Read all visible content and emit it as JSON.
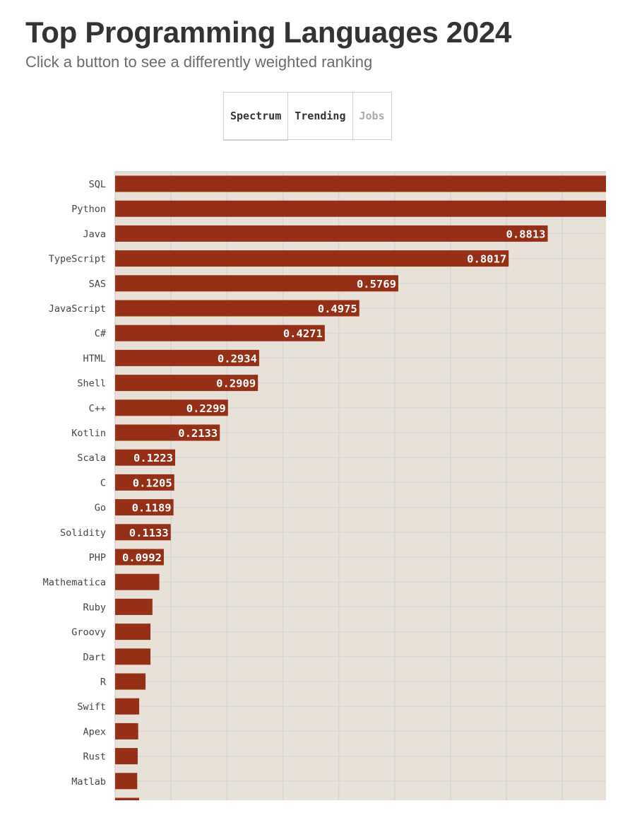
{
  "header": {
    "title": "Top Programming Languages 2024",
    "subtitle": "Click a button to see a differently weighted ranking"
  },
  "tabs": [
    {
      "label": "Spectrum",
      "state": "active"
    },
    {
      "label": "Trending",
      "state": "enabled"
    },
    {
      "label": "Jobs",
      "state": "disabled"
    }
  ],
  "colors": {
    "bar": "#952f15",
    "plot_background": "#e8e1d8",
    "grid": "#d6d6d6"
  },
  "chart_data": {
    "type": "bar",
    "orientation": "horizontal",
    "xlim": [
      0,
      1
    ],
    "grid": true,
    "categories": [
      "SQL",
      "Python",
      "Java",
      "TypeScript",
      "SAS",
      "JavaScript",
      "C#",
      "HTML",
      "Shell",
      "C++",
      "Kotlin",
      "Scala",
      "C",
      "Go",
      "Solidity",
      "PHP",
      "Mathematica",
      "Ruby",
      "Groovy",
      "Dart",
      "R",
      "Swift",
      "Apex",
      "Rust",
      "Matlab"
    ],
    "values": [
      1.0,
      1.0,
      0.8813,
      0.8017,
      0.5769,
      0.4975,
      0.4271,
      0.2934,
      0.2909,
      0.2299,
      0.2133,
      0.1223,
      0.1205,
      0.1189,
      0.1133,
      0.0992,
      0.09,
      0.076,
      0.072,
      0.072,
      0.062,
      0.049,
      0.047,
      0.046,
      0.045
    ],
    "data_labels": [
      "",
      "",
      "0.8813",
      "0.8017",
      "0.5769",
      "0.4975",
      "0.4271",
      "0.2934",
      "0.2909",
      "0.2299",
      "0.2133",
      "0.1223",
      "0.1205",
      "0.1189",
      "0.1133",
      "0.0992",
      "",
      "",
      "",
      "",
      "",
      "",
      "",
      "",
      ""
    ]
  }
}
